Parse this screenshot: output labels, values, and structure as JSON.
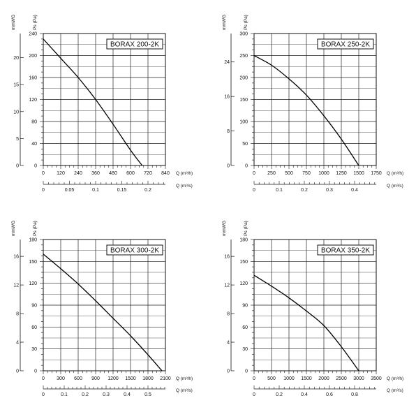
{
  "chart_data": [
    {
      "type": "line",
      "title": "BORAX  200-2K",
      "ylabel_left": "mmWG",
      "ylabel_right": "Ps (Pa)",
      "xlabel_primary": "Q (m³/h)",
      "xlabel_secondary": "Q (m³/s)",
      "xlim": [
        0,
        840
      ],
      "ylim": [
        0,
        240
      ],
      "x_ticks": [
        0,
        120,
        240,
        360,
        480,
        600,
        720,
        840
      ],
      "y_ticks": [
        0,
        40,
        80,
        120,
        160,
        200,
        240
      ],
      "mmwg_ticks": [
        0,
        5,
        10,
        15,
        20
      ],
      "m3s_ticks": [
        0,
        0.05,
        0.1,
        0.15,
        0.2
      ],
      "m3s_tick_labels": [
        "0",
        "0.05",
        "0.1",
        "0.15",
        "0.2"
      ],
      "grid": true,
      "series": [
        {
          "x": [
            0,
            120,
            240,
            360,
            480,
            600,
            680
          ],
          "y": [
            230,
            195,
            160,
            120,
            75,
            28,
            0
          ]
        }
      ]
    },
    {
      "type": "line",
      "title": "BORAX 250-2K",
      "ylabel_left": "mmWG",
      "ylabel_right": "Ps (Pa)",
      "xlabel_primary": "Q (m³/h)",
      "xlabel_secondary": "Q (m³/s)",
      "xlim": [
        0,
        1750
      ],
      "ylim": [
        0,
        300
      ],
      "x_ticks": [
        0,
        250,
        500,
        750,
        1000,
        1250,
        1500,
        1750
      ],
      "y_ticks": [
        0,
        50,
        100,
        150,
        200,
        250,
        300
      ],
      "mmwg_ticks": [
        0,
        8,
        16,
        24
      ],
      "m3s_ticks": [
        0,
        0.1,
        0.2,
        0.3,
        0.4
      ],
      "m3s_tick_labels": [
        "0",
        "0.1",
        "0.2",
        "0.3",
        "0.4"
      ],
      "grid": true,
      "series": [
        {
          "x": [
            0,
            250,
            500,
            750,
            1000,
            1250,
            1500
          ],
          "y": [
            250,
            228,
            197,
            160,
            113,
            60,
            0
          ]
        }
      ]
    },
    {
      "type": "line",
      "title": "BORAX 300-2K",
      "ylabel_left": "mmWG",
      "ylabel_right": "Ps (Pa)",
      "xlabel_primary": "Q (m³/h)",
      "xlabel_secondary": "Q (m³/s)",
      "xlim": [
        0,
        2100
      ],
      "ylim": [
        0,
        180
      ],
      "x_ticks": [
        0,
        300,
        600,
        900,
        1200,
        1500,
        1800,
        2100
      ],
      "y_ticks": [
        0,
        30,
        60,
        90,
        120,
        150,
        180
      ],
      "mmwg_ticks": [
        0,
        4,
        8,
        12,
        16
      ],
      "m3s_ticks": [
        0,
        0.1,
        0.2,
        0.3,
        0.4,
        0.5
      ],
      "m3s_tick_labels": [
        "0",
        "0.1",
        "0.2",
        "0.3",
        "0.4",
        "0.5"
      ],
      "grid": true,
      "series": [
        {
          "x": [
            0,
            300,
            600,
            900,
            1200,
            1500,
            1800,
            2040
          ],
          "y": [
            160,
            140,
            119,
            96,
            72,
            48,
            22,
            0
          ]
        }
      ]
    },
    {
      "type": "line",
      "title": "BORAX 350-2K",
      "ylabel_left": "mmWG",
      "ylabel_right": "Ps (Pa)",
      "xlabel_primary": "Q (m³/h)",
      "xlabel_secondary": "Q (m³/s)",
      "xlim": [
        0,
        3500
      ],
      "ylim": [
        0,
        180
      ],
      "x_ticks": [
        0,
        500,
        1000,
        1500,
        2000,
        2500,
        3000,
        3500
      ],
      "y_ticks": [
        0,
        30,
        60,
        90,
        120,
        150,
        180
      ],
      "mmwg_ticks": [
        0,
        4,
        8,
        12,
        16
      ],
      "m3s_ticks": [
        0,
        0.2,
        0.4,
        0.6,
        0.8
      ],
      "m3s_tick_labels": [
        "0",
        "0.2",
        "0.4",
        "0.6",
        "0.8"
      ],
      "grid": true,
      "series": [
        {
          "x": [
            0,
            500,
            1000,
            1500,
            2000,
            2500,
            3000
          ],
          "y": [
            131,
            116,
            100,
            82,
            62,
            33,
            0
          ]
        }
      ]
    }
  ]
}
